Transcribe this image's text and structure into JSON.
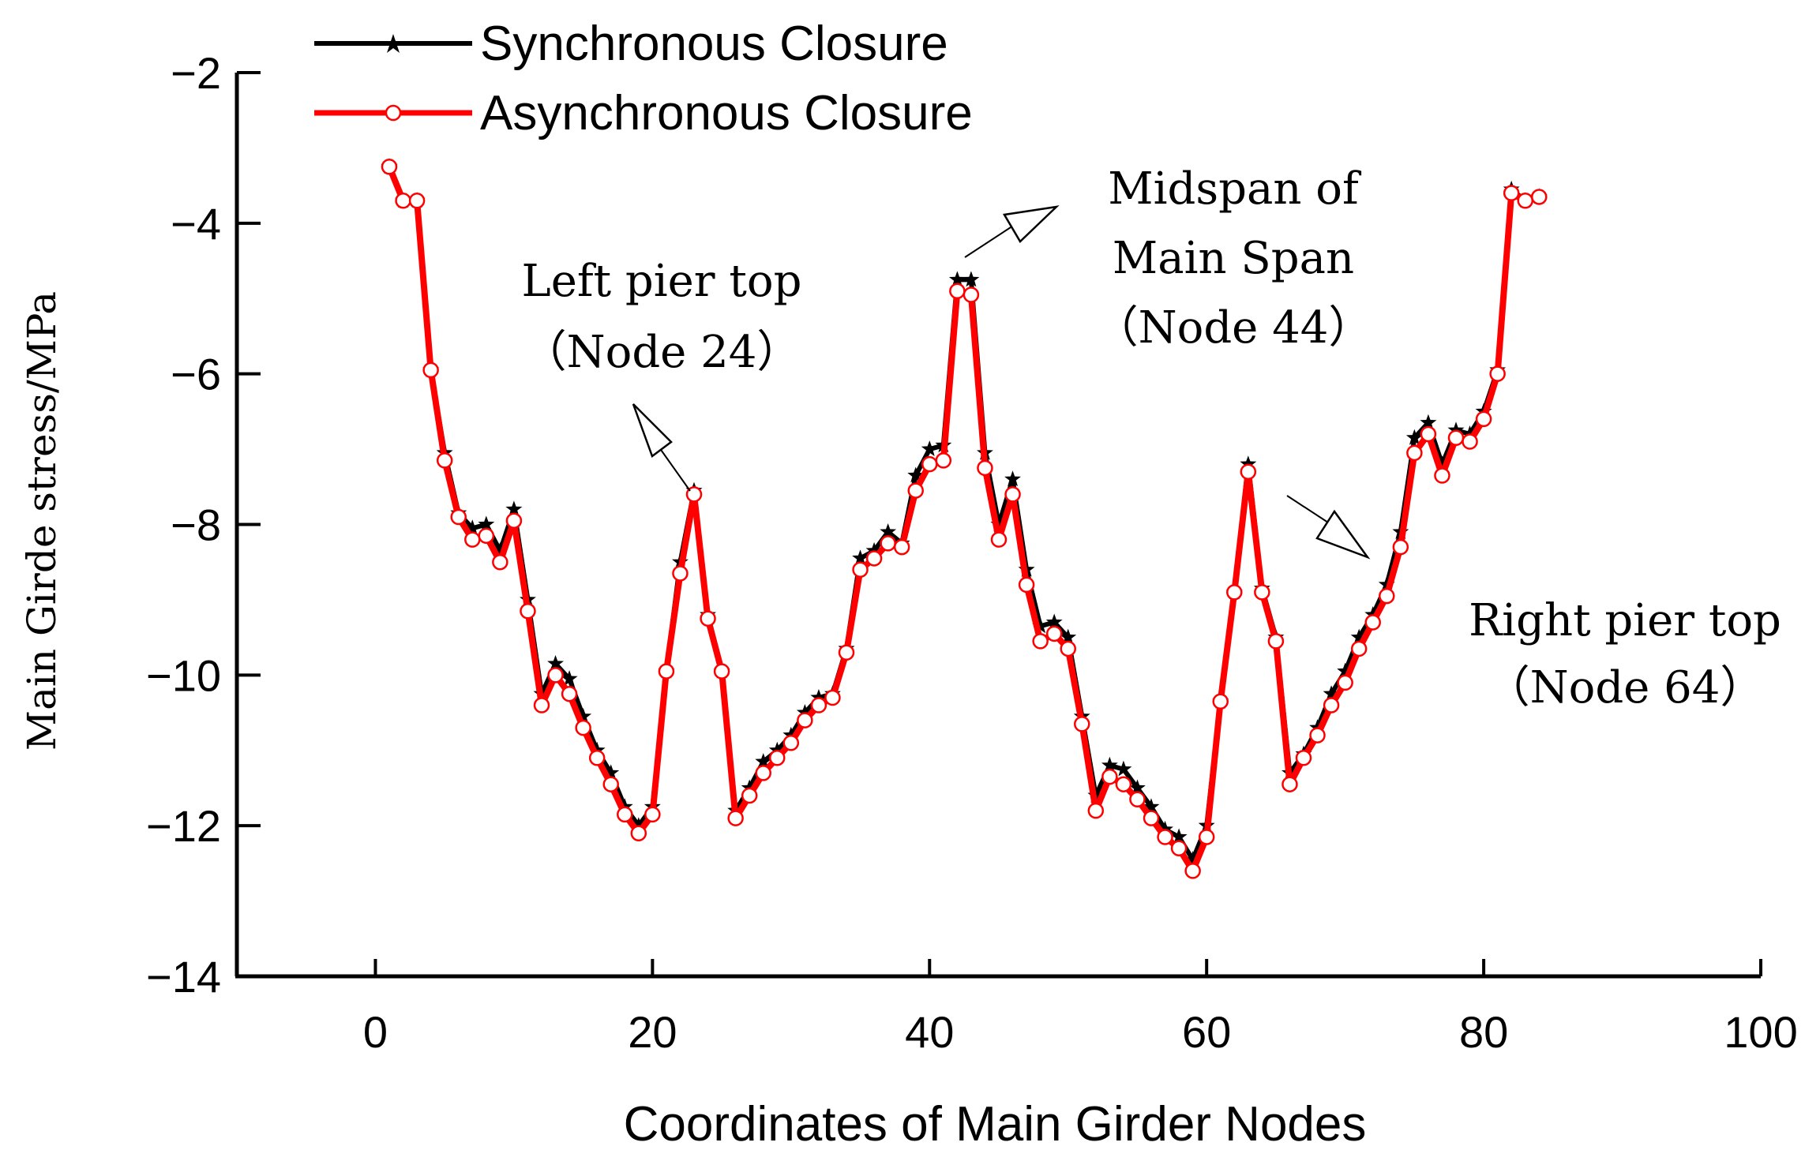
{
  "chart_data": {
    "type": "line",
    "xlabel": "Coordinates of Main Girder Nodes",
    "ylabel": "Main Girde stress/MPa",
    "xlim": [
      -10,
      100
    ],
    "ylim": [
      -14,
      -2
    ],
    "xticks": [
      0,
      20,
      40,
      60,
      80,
      100
    ],
    "yticks": [
      -14,
      -12,
      -10,
      -8,
      -6,
      -4,
      -2
    ],
    "grid": false,
    "legend_position": "top-left",
    "series": [
      {
        "name": "Synchronous Closure",
        "color": "#000000",
        "marker": "star",
        "x": [
          1,
          2,
          3,
          4,
          5,
          6,
          7,
          8,
          9,
          10,
          11,
          12,
          13,
          14,
          15,
          16,
          17,
          18,
          19,
          20,
          21,
          22,
          23,
          24,
          25,
          26,
          27,
          28,
          29,
          30,
          31,
          32,
          33,
          34,
          35,
          36,
          37,
          38,
          39,
          40,
          41,
          42,
          43,
          44,
          45,
          46,
          47,
          48,
          49,
          50,
          51,
          52,
          53,
          54,
          55,
          56,
          57,
          58,
          59,
          60,
          61,
          62,
          63,
          64,
          65,
          66,
          67,
          68,
          69,
          70,
          71,
          72,
          73,
          74,
          75,
          76,
          77,
          78,
          79,
          80,
          81,
          82,
          83,
          84
        ],
        "values": [
          -3.25,
          -3.7,
          -3.7,
          -5.95,
          -7.05,
          -7.85,
          -8.05,
          -8.0,
          -8.35,
          -7.8,
          -9.0,
          -10.25,
          -9.85,
          -10.05,
          -10.55,
          -11.0,
          -11.3,
          -11.75,
          -12.0,
          -11.75,
          -9.95,
          -8.5,
          -7.55,
          -9.2,
          -9.95,
          -11.8,
          -11.5,
          -11.15,
          -11.0,
          -10.8,
          -10.5,
          -10.3,
          -10.25,
          -9.65,
          -8.45,
          -8.35,
          -8.1,
          -8.25,
          -7.35,
          -7.0,
          -6.95,
          -4.75,
          -4.75,
          -7.05,
          -8.0,
          -7.4,
          -8.6,
          -9.35,
          -9.3,
          -9.5,
          -10.55,
          -11.6,
          -11.2,
          -11.25,
          -11.5,
          -11.75,
          -12.05,
          -12.15,
          -12.45,
          -12.0,
          -10.35,
          -8.9,
          -7.2,
          -8.85,
          -9.5,
          -11.3,
          -11.05,
          -10.7,
          -10.25,
          -9.95,
          -9.5,
          -9.2,
          -8.8,
          -8.1,
          -6.85,
          -6.65,
          -7.2,
          -6.75,
          -6.8,
          -6.5,
          -5.95,
          -3.55,
          -3.7,
          -3.65
        ]
      },
      {
        "name": "Asynchronous Closure",
        "color": "#ff0000",
        "marker": "open-circle",
        "x": [
          1,
          2,
          3,
          4,
          5,
          6,
          7,
          8,
          9,
          10,
          11,
          12,
          13,
          14,
          15,
          16,
          17,
          18,
          19,
          20,
          21,
          22,
          23,
          24,
          25,
          26,
          27,
          28,
          29,
          30,
          31,
          32,
          33,
          34,
          35,
          36,
          37,
          38,
          39,
          40,
          41,
          42,
          43,
          44,
          45,
          46,
          47,
          48,
          49,
          50,
          51,
          52,
          53,
          54,
          55,
          56,
          57,
          58,
          59,
          60,
          61,
          62,
          63,
          64,
          65,
          66,
          67,
          68,
          69,
          70,
          71,
          72,
          73,
          74,
          75,
          76,
          77,
          78,
          79,
          80,
          81,
          82,
          83,
          84
        ],
        "values": [
          -3.25,
          -3.7,
          -3.7,
          -5.95,
          -7.15,
          -7.9,
          -8.2,
          -8.15,
          -8.5,
          -7.95,
          -9.15,
          -10.4,
          -10.0,
          -10.25,
          -10.7,
          -11.1,
          -11.45,
          -11.85,
          -12.1,
          -11.85,
          -9.95,
          -8.65,
          -7.6,
          -9.25,
          -9.95,
          -11.9,
          -11.6,
          -11.3,
          -11.1,
          -10.9,
          -10.6,
          -10.4,
          -10.3,
          -9.7,
          -8.6,
          -8.45,
          -8.25,
          -8.3,
          -7.55,
          -7.2,
          -7.15,
          -4.9,
          -4.95,
          -7.25,
          -8.2,
          -7.6,
          -8.8,
          -9.55,
          -9.45,
          -9.65,
          -10.65,
          -11.8,
          -11.35,
          -11.45,
          -11.65,
          -11.9,
          -12.15,
          -12.3,
          -12.6,
          -12.15,
          -10.35,
          -8.9,
          -7.3,
          -8.9,
          -9.55,
          -11.45,
          -11.1,
          -10.8,
          -10.4,
          -10.1,
          -9.65,
          -9.3,
          -8.95,
          -8.3,
          -7.05,
          -6.8,
          -7.35,
          -6.85,
          -6.9,
          -6.6,
          -6.0,
          -3.6,
          -3.7,
          -3.65
        ]
      }
    ],
    "annotations": [
      {
        "lines": [
          "Left pier top",
          "（Node 24）"
        ],
        "anchor_x": 23,
        "anchor_y": -7.55
      },
      {
        "lines": [
          "Midspan of",
          "Main Span",
          "（Node 44）"
        ],
        "anchor_x": 42.5,
        "anchor_y": -4.75
      },
      {
        "lines": [
          "Right pier top",
          "（Node 64）"
        ],
        "anchor_x": 73,
        "anchor_y": -8.2
      }
    ]
  }
}
